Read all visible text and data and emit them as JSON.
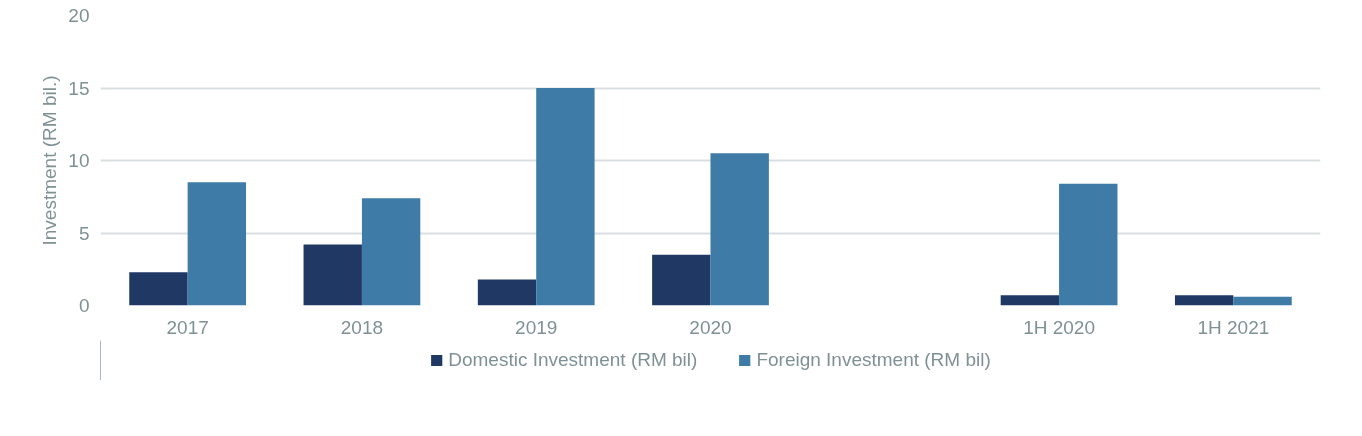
{
  "chart_data": {
    "type": "bar",
    "ylabel": "Investment (RM bil.)",
    "categories": [
      "2017",
      "2018",
      "2019",
      "2020",
      null,
      "1H 2020",
      "1H 2021"
    ],
    "series": [
      {
        "name": "Domestic Investment (RM bil)",
        "color": "#203864",
        "values": [
          2.3,
          4.2,
          1.8,
          3.5,
          null,
          0.7,
          0.7
        ]
      },
      {
        "name": "Foreign Investment (RM bil)",
        "color": "#3e7ba6",
        "values": [
          8.5,
          7.4,
          15.0,
          10.5,
          null,
          8.4,
          0.6
        ]
      }
    ],
    "ylim": [
      0,
      20
    ],
    "yticks": [
      0,
      5,
      10,
      15,
      20
    ],
    "grid": "y",
    "legend": "bottom"
  }
}
